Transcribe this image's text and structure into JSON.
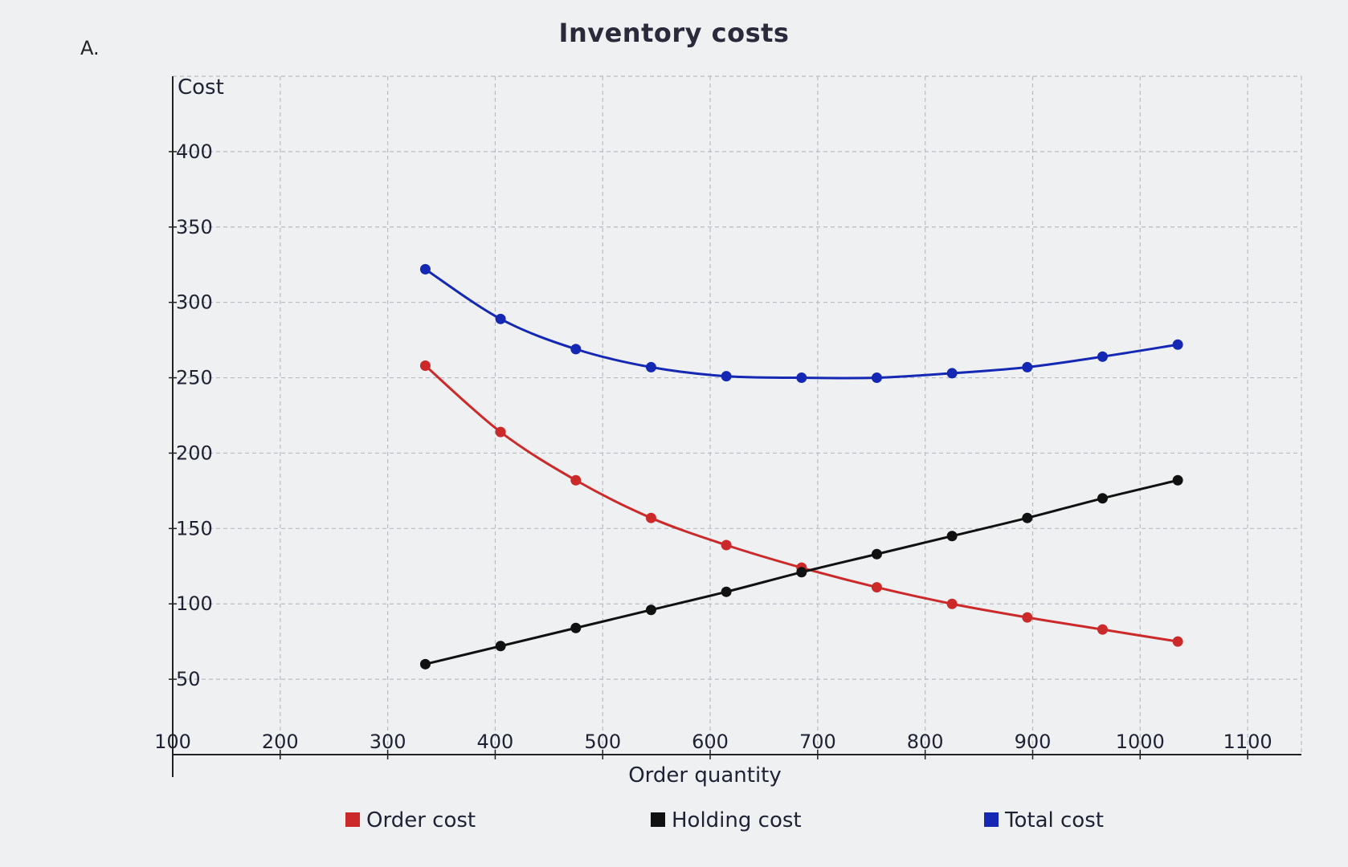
{
  "panel_label": "A.",
  "chart_data": {
    "type": "line",
    "title": "Inventory costs",
    "xlabel": "Order quantity",
    "ylabel": "Cost",
    "xlim": [
      100,
      1150
    ],
    "ylim": [
      0,
      450
    ],
    "x_ticks": [
      100,
      200,
      300,
      400,
      500,
      600,
      700,
      800,
      900,
      1000,
      1100
    ],
    "x_tick_labels": [
      "100",
      "200",
      "300",
      "400",
      "500",
      "600",
      "700",
      "800",
      "900",
      "1000",
      "1100"
    ],
    "y_ticks": [
      50,
      100,
      150,
      200,
      250,
      300,
      350,
      400
    ],
    "y_tick_labels": [
      "50",
      "100",
      "150",
      "200",
      "250",
      "300",
      "350",
      "400"
    ],
    "grid": true,
    "legend_position": "bottom",
    "x": [
      335,
      405,
      475,
      545,
      615,
      685,
      755,
      825,
      895,
      965,
      1035
    ],
    "series": [
      {
        "name": "Order cost",
        "color": "#cc2a2a",
        "values": [
          258,
          214,
          182,
          157,
          139,
          124,
          111,
          100,
          91,
          83,
          75
        ]
      },
      {
        "name": "Holding cost",
        "color": "#111111",
        "values": [
          60,
          72,
          84,
          96,
          108,
          121,
          133,
          145,
          157,
          170,
          182
        ]
      },
      {
        "name": "Total cost",
        "color": "#1428b4",
        "values": [
          322,
          289,
          269,
          257,
          251,
          250,
          250,
          253,
          257,
          264,
          272
        ]
      }
    ]
  }
}
